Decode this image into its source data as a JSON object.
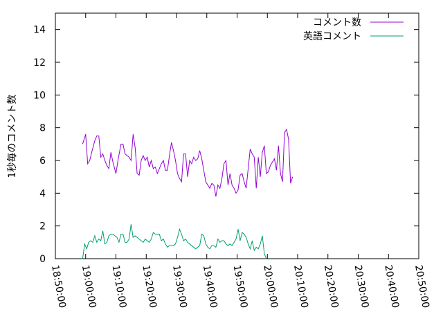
{
  "chart_data": {
    "type": "line",
    "title": "",
    "xlabel": "",
    "ylabel": "1秒毎のコメント数",
    "ylim": [
      0,
      15
    ],
    "xlim": [
      "18:50:00",
      "20:50:00"
    ],
    "yticks": [
      0,
      2,
      4,
      6,
      8,
      10,
      12,
      14
    ],
    "xticks": [
      "18:50:00",
      "19:00:00",
      "19:10:00",
      "19:20:00",
      "19:30:00",
      "19:40:00",
      "19:50:00",
      "20:00:00",
      "20:10:00",
      "20:20:00",
      "20:30:00",
      "20:40:00",
      "20:50:00"
    ],
    "grid": false,
    "legend_position": "top-right",
    "series": [
      {
        "name": "コメント数",
        "color": "#9400d3",
        "points": [
          [
            "18:59:00",
            7.0
          ],
          [
            "18:60:00",
            7.6
          ],
          [
            "19:00:40",
            5.8
          ],
          [
            "19:01:20",
            6.0
          ],
          [
            "19:02:00",
            6.5
          ],
          [
            "19:03:00",
            7.2
          ],
          [
            "19:03:40",
            7.5
          ],
          [
            "19:04:20",
            7.5
          ],
          [
            "19:05:00",
            6.2
          ],
          [
            "19:05:40",
            6.4
          ],
          [
            "19:06:20",
            6.0
          ],
          [
            "19:07:00",
            5.7
          ],
          [
            "19:07:40",
            5.5
          ],
          [
            "19:08:20",
            6.5
          ],
          [
            "19:09:00",
            5.9
          ],
          [
            "19:10:00",
            5.2
          ],
          [
            "19:10:40",
            6.0
          ],
          [
            "19:11:40",
            7.0
          ],
          [
            "19:12:20",
            7.0
          ],
          [
            "19:13:00",
            6.4
          ],
          [
            "19:13:40",
            6.3
          ],
          [
            "19:14:20",
            6.2
          ],
          [
            "19:15:00",
            6.0
          ],
          [
            "19:15:40",
            7.6
          ],
          [
            "19:16:20",
            6.8
          ],
          [
            "19:17:00",
            5.2
          ],
          [
            "19:17:40",
            5.1
          ],
          [
            "19:18:20",
            6.0
          ],
          [
            "19:19:00",
            6.3
          ],
          [
            "19:19:40",
            6.0
          ],
          [
            "19:20:20",
            6.2
          ],
          [
            "19:21:00",
            5.6
          ],
          [
            "19:21:40",
            6.0
          ],
          [
            "19:22:20",
            5.5
          ],
          [
            "19:23:00",
            5.6
          ],
          [
            "19:23:40",
            5.2
          ],
          [
            "19:24:20",
            5.5
          ],
          [
            "19:25:00",
            5.8
          ],
          [
            "19:25:40",
            6.0
          ],
          [
            "19:26:20",
            5.4
          ],
          [
            "19:27:00",
            5.4
          ],
          [
            "19:27:40",
            6.3
          ],
          [
            "19:28:20",
            7.1
          ],
          [
            "19:29:00",
            6.6
          ],
          [
            "19:29:40",
            6.0
          ],
          [
            "19:30:20",
            5.2
          ],
          [
            "19:31:00",
            4.9
          ],
          [
            "19:31:40",
            4.7
          ],
          [
            "19:32:20",
            6.4
          ],
          [
            "19:33:00",
            6.4
          ],
          [
            "19:33:40",
            5.0
          ],
          [
            "19:34:20",
            6.0
          ],
          [
            "19:35:00",
            5.8
          ],
          [
            "19:35:40",
            6.2
          ],
          [
            "19:36:20",
            6.0
          ],
          [
            "19:37:00",
            6.1
          ],
          [
            "19:37:40",
            6.6
          ],
          [
            "19:38:20",
            6.1
          ],
          [
            "19:39:00",
            5.4
          ],
          [
            "19:39:40",
            4.7
          ],
          [
            "19:40:20",
            4.5
          ],
          [
            "19:41:00",
            4.3
          ],
          [
            "19:41:40",
            4.6
          ],
          [
            "19:42:20",
            4.5
          ],
          [
            "19:43:00",
            3.8
          ],
          [
            "19:43:40",
            4.5
          ],
          [
            "19:44:20",
            4.3
          ],
          [
            "19:45:00",
            4.9
          ],
          [
            "19:45:40",
            5.8
          ],
          [
            "19:46:20",
            6.0
          ],
          [
            "19:47:00",
            4.5
          ],
          [
            "19:47:40",
            5.2
          ],
          [
            "19:48:20",
            4.5
          ],
          [
            "19:49:00",
            4.3
          ],
          [
            "19:49:40",
            4.0
          ],
          [
            "19:50:20",
            4.2
          ],
          [
            "19:51:00",
            5.1
          ],
          [
            "19:51:40",
            5.2
          ],
          [
            "19:52:20",
            4.7
          ],
          [
            "19:53:00",
            4.3
          ],
          [
            "19:53:40",
            5.5
          ],
          [
            "19:54:20",
            6.7
          ],
          [
            "19:55:00",
            6.4
          ],
          [
            "19:55:40",
            6.2
          ],
          [
            "19:56:20",
            4.3
          ],
          [
            "19:57:00",
            6.2
          ],
          [
            "19:57:40",
            5.0
          ],
          [
            "19:58:20",
            6.5
          ],
          [
            "19:59:00",
            6.9
          ],
          [
            "19:59:40",
            5.2
          ],
          [
            "20:00:20",
            5.3
          ],
          [
            "20:01:00",
            5.7
          ],
          [
            "20:01:40",
            5.9
          ],
          [
            "20:02:20",
            6.1
          ],
          [
            "20:03:00",
            5.4
          ],
          [
            "20:03:40",
            6.9
          ],
          [
            "20:04:20",
            5.2
          ],
          [
            "20:05:00",
            4.7
          ],
          [
            "20:05:40",
            7.7
          ],
          [
            "20:06:20",
            7.9
          ],
          [
            "20:07:00",
            7.3
          ],
          [
            "20:07:40",
            4.6
          ],
          [
            "20:08:20",
            5.0
          ]
        ]
      },
      {
        "name": "英語コメント",
        "color": "#009e73",
        "points": [
          [
            "18:59:00",
            0.0
          ],
          [
            "18:59:40",
            0.9
          ],
          [
            "19:00:20",
            0.6
          ],
          [
            "19:01:00",
            1.0
          ],
          [
            "19:01:40",
            1.1
          ],
          [
            "19:02:20",
            1.0
          ],
          [
            "19:03:00",
            1.4
          ],
          [
            "19:03:40",
            1.0
          ],
          [
            "19:04:20",
            1.2
          ],
          [
            "19:05:00",
            1.1
          ],
          [
            "19:05:40",
            1.7
          ],
          [
            "19:06:20",
            0.9
          ],
          [
            "19:07:00",
            1.0
          ],
          [
            "19:07:40",
            1.4
          ],
          [
            "19:08:20",
            1.5
          ],
          [
            "19:09:00",
            1.5
          ],
          [
            "19:09:40",
            1.4
          ],
          [
            "19:10:20",
            1.3
          ],
          [
            "19:11:00",
            1.0
          ],
          [
            "19:11:40",
            1.5
          ],
          [
            "19:12:20",
            1.5
          ],
          [
            "19:13:00",
            1.0
          ],
          [
            "19:13:40",
            1.0
          ],
          [
            "19:14:20",
            1.2
          ],
          [
            "19:15:00",
            2.1
          ],
          [
            "19:15:40",
            1.3
          ],
          [
            "19:16:20",
            1.4
          ],
          [
            "19:17:00",
            1.3
          ],
          [
            "19:17:40",
            1.2
          ],
          [
            "19:18:20",
            1.1
          ],
          [
            "19:19:00",
            1.0
          ],
          [
            "19:19:40",
            1.2
          ],
          [
            "19:20:20",
            1.1
          ],
          [
            "19:21:00",
            1.0
          ],
          [
            "19:21:40",
            1.2
          ],
          [
            "19:22:20",
            1.6
          ],
          [
            "19:23:00",
            1.5
          ],
          [
            "19:23:40",
            1.5
          ],
          [
            "19:24:20",
            1.5
          ],
          [
            "19:25:00",
            1.1
          ],
          [
            "19:25:40",
            1.2
          ],
          [
            "19:26:20",
            0.9
          ],
          [
            "19:27:00",
            0.7
          ],
          [
            "19:27:40",
            0.8
          ],
          [
            "19:28:20",
            0.8
          ],
          [
            "19:29:00",
            0.8
          ],
          [
            "19:29:40",
            0.9
          ],
          [
            "19:30:20",
            1.3
          ],
          [
            "19:31:00",
            1.8
          ],
          [
            "19:31:40",
            1.5
          ],
          [
            "19:32:20",
            1.1
          ],
          [
            "19:33:00",
            1.2
          ],
          [
            "19:33:40",
            1.0
          ],
          [
            "19:34:20",
            0.9
          ],
          [
            "19:35:00",
            0.8
          ],
          [
            "19:35:40",
            0.7
          ],
          [
            "19:36:20",
            0.6
          ],
          [
            "19:37:00",
            0.7
          ],
          [
            "19:37:40",
            0.8
          ],
          [
            "19:38:20",
            1.5
          ],
          [
            "19:39:00",
            1.4
          ],
          [
            "19:39:40",
            0.9
          ],
          [
            "19:40:20",
            0.7
          ],
          [
            "19:41:00",
            0.6
          ],
          [
            "19:41:40",
            0.8
          ],
          [
            "19:42:20",
            0.8
          ],
          [
            "19:43:00",
            0.7
          ],
          [
            "19:43:40",
            1.2
          ],
          [
            "19:44:20",
            1.0
          ],
          [
            "19:45:00",
            1.1
          ],
          [
            "19:45:40",
            1.1
          ],
          [
            "19:46:20",
            0.9
          ],
          [
            "19:47:00",
            0.8
          ],
          [
            "19:47:40",
            0.9
          ],
          [
            "19:48:20",
            0.8
          ],
          [
            "19:49:00",
            1.0
          ],
          [
            "19:49:40",
            1.2
          ],
          [
            "19:50:20",
            1.8
          ],
          [
            "19:51:00",
            1.1
          ],
          [
            "19:51:40",
            1.6
          ],
          [
            "19:52:20",
            1.5
          ],
          [
            "19:53:00",
            1.3
          ],
          [
            "19:53:40",
            0.9
          ],
          [
            "19:54:20",
            0.6
          ],
          [
            "19:55:00",
            1.1
          ],
          [
            "19:55:40",
            0.5
          ],
          [
            "19:56:20",
            0.7
          ],
          [
            "19:57:00",
            0.6
          ],
          [
            "19:57:40",
            0.9
          ],
          [
            "19:58:20",
            1.4
          ],
          [
            "19:59:00",
            0.3
          ],
          [
            "19:59:40",
            0.0
          ]
        ]
      }
    ]
  }
}
